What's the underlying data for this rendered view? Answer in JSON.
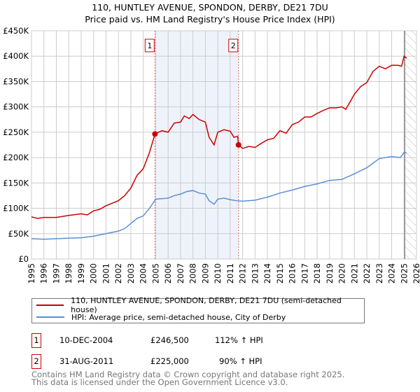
{
  "title": {
    "line1": "110, HUNTLEY AVENUE, SPONDON, DERBY, DE21 7DU",
    "line2": "Price paid vs. HM Land Registry's House Price Index (HPI)"
  },
  "chart_data": {
    "type": "line",
    "xlim": [
      1995,
      2026
    ],
    "ylim": [
      0,
      450000
    ],
    "x_ticks": [
      "1995",
      "1996",
      "1997",
      "1998",
      "1999",
      "2000",
      "2001",
      "2002",
      "2003",
      "2004",
      "2005",
      "2006",
      "2007",
      "2008",
      "2009",
      "2010",
      "2011",
      "2012",
      "2013",
      "2014",
      "2015",
      "2016",
      "2017",
      "2018",
      "2019",
      "2020",
      "2021",
      "2022",
      "2023",
      "2024",
      "2025",
      "2026"
    ],
    "y_ticks": [
      {
        "v": 0,
        "label": "£0"
      },
      {
        "v": 50000,
        "label": "£50K"
      },
      {
        "v": 100000,
        "label": "£100K"
      },
      {
        "v": 150000,
        "label": "£150K"
      },
      {
        "v": 200000,
        "label": "£200K"
      },
      {
        "v": 250000,
        "label": "£250K"
      },
      {
        "v": 300000,
        "label": "£300K"
      },
      {
        "v": 350000,
        "label": "£350K"
      },
      {
        "v": 400000,
        "label": "£400K"
      },
      {
        "v": 450000,
        "label": "£450K"
      }
    ],
    "grid": true,
    "shaded_period": [
      2004.94,
      2011.67
    ],
    "forecast_from": 2025.05,
    "series": [
      {
        "name": "110, HUNTLEY AVENUE, SPONDON, DERBY, DE21 7DU (semi-detached house)",
        "color": "#cc0000",
        "x": [
          1995,
          1995.5,
          1996,
          1997,
          1998,
          1999,
          1999.5,
          2000,
          2000.5,
          2001,
          2002,
          2002.5,
          2003,
          2003.5,
          2004,
          2004.5,
          2004.94,
          2005.5,
          2006,
          2006.5,
          2007,
          2007.3,
          2007.7,
          2008,
          2008.5,
          2009,
          2009.3,
          2009.7,
          2010,
          2010.5,
          2011,
          2011.3,
          2011.6,
          2011.67,
          2012,
          2012.5,
          2013,
          2013.5,
          2014,
          2014.5,
          2015,
          2015.5,
          2016,
          2016.5,
          2017,
          2017.5,
          2018,
          2018.5,
          2019,
          2019.5,
          2020,
          2020.3,
          2020.7,
          2021,
          2021.5,
          2022,
          2022.5,
          2023,
          2023.5,
          2024,
          2024.5,
          2024.8,
          2025,
          2025.2
        ],
        "y": [
          83000,
          80000,
          82000,
          82000,
          86000,
          89000,
          87000,
          95000,
          98000,
          105000,
          115000,
          125000,
          140000,
          165000,
          178000,
          210000,
          246500,
          253000,
          250000,
          268000,
          270000,
          282000,
          277000,
          285000,
          275000,
          270000,
          240000,
          225000,
          250000,
          255000,
          252000,
          240000,
          242000,
          225000,
          218000,
          222000,
          220000,
          228000,
          235000,
          238000,
          253000,
          248000,
          265000,
          270000,
          280000,
          280000,
          287000,
          293000,
          298000,
          298000,
          300000,
          295000,
          312000,
          325000,
          340000,
          348000,
          370000,
          380000,
          375000,
          382000,
          382000,
          380000,
          400000,
          396000
        ]
      },
      {
        "name": "HPI: Average price, semi-detached house, City of Derby",
        "color": "#5b8fd4",
        "x": [
          1995,
          1996,
          1997,
          1998,
          1999,
          2000,
          2001,
          2002,
          2002.5,
          2003,
          2003.5,
          2004,
          2004.5,
          2005,
          2006,
          2006.5,
          2007,
          2007.5,
          2008,
          2008.5,
          2009,
          2009.3,
          2009.7,
          2010,
          2010.5,
          2011,
          2011.5,
          2012,
          2013,
          2014,
          2015,
          2016,
          2017,
          2018,
          2019,
          2020,
          2021,
          2022,
          2023,
          2024,
          2024.7,
          2025,
          2025.2
        ],
        "y": [
          40000,
          39000,
          40000,
          41000,
          42000,
          45000,
          50000,
          55000,
          60000,
          70000,
          80000,
          85000,
          100000,
          118000,
          120000,
          125000,
          128000,
          133000,
          135000,
          130000,
          128000,
          115000,
          108000,
          118000,
          120000,
          117000,
          115000,
          114000,
          116000,
          122000,
          130000,
          136000,
          143000,
          148000,
          155000,
          157000,
          168000,
          180000,
          198000,
          202000,
          200000,
          210000,
          209000
        ]
      }
    ],
    "markers": [
      {
        "label": "1",
        "x": 2004.94,
        "y": 246500
      },
      {
        "label": "2",
        "x": 2011.67,
        "y": 225000
      }
    ]
  },
  "legend": {
    "red": "110, HUNTLEY AVENUE, SPONDON, DERBY, DE21 7DU (semi-detached house)",
    "blue": "HPI: Average price, semi-detached house, City of Derby"
  },
  "transactions": [
    {
      "num": "1",
      "date": "10-DEC-2004",
      "price": "£246,500",
      "hpi": "112% ↑ HPI"
    },
    {
      "num": "2",
      "date": "31-AUG-2011",
      "price": "£225,000",
      "hpi": "90% ↑ HPI"
    }
  ],
  "footer": {
    "line1": "Contains HM Land Registry data © Crown copyright and database right 2025.",
    "line2": "This data is licensed under the Open Government Licence v3.0."
  }
}
